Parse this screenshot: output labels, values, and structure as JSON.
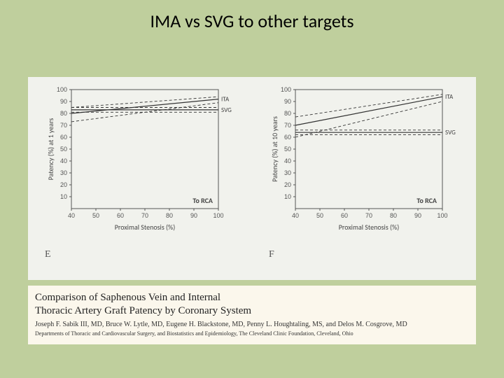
{
  "title": "IMA vs SVG to other targets",
  "figure": {
    "background_color": "#f1f2ed",
    "axis_color": "#555555",
    "line_color": "#333333",
    "dash_pattern": "4 3",
    "line_width_solid": 1.2,
    "line_width_dash": 0.9,
    "xlim": [
      40,
      100
    ],
    "ylim": [
      0,
      100
    ],
    "xticks": [
      40,
      50,
      60,
      70,
      80,
      90,
      100
    ],
    "yticks": [
      10,
      20,
      30,
      40,
      50,
      60,
      70,
      80,
      90,
      100
    ],
    "xlabel": "Proximal Stenosis (%)",
    "panel_text": "To RCA",
    "panels": {
      "E": {
        "corner": "E",
        "ylabel": "Patency (%) at 1 years",
        "series": [
          {
            "name": "ITA",
            "label": "ITA",
            "style": "solid",
            "center": [
              [
                40,
                80
              ],
              [
                100,
                92
              ]
            ],
            "upper": [
              [
                40,
                85
              ],
              [
                100,
                94
              ]
            ],
            "lower": [
              [
                40,
                73
              ],
              [
                100,
                89
              ]
            ]
          },
          {
            "name": "SVG",
            "label": "SVG",
            "style": "solid",
            "center": [
              [
                40,
                83
              ],
              [
                100,
                83
              ]
            ],
            "upper": [
              [
                40,
                85
              ],
              [
                100,
                85
              ]
            ],
            "lower": [
              [
                40,
                81
              ],
              [
                100,
                81
              ]
            ]
          }
        ],
        "label_positions": {
          "ITA": [
            100,
            92
          ],
          "SVG": [
            100,
            83
          ]
        }
      },
      "F": {
        "corner": "F",
        "ylabel": "Patency (%) at 10 years",
        "series": [
          {
            "name": "ITA",
            "label": "ITA",
            "style": "solid",
            "center": [
              [
                40,
                70
              ],
              [
                100,
                94
              ]
            ],
            "upper": [
              [
                40,
                77
              ],
              [
                100,
                96
              ]
            ],
            "lower": [
              [
                40,
                60
              ],
              [
                100,
                90
              ]
            ]
          },
          {
            "name": "SVG",
            "label": "SVG",
            "style": "solid",
            "center": [
              [
                40,
                64
              ],
              [
                100,
                64
              ]
            ],
            "upper": [
              [
                40,
                66
              ],
              [
                100,
                66
              ]
            ],
            "lower": [
              [
                40,
                62
              ],
              [
                100,
                62
              ]
            ]
          }
        ],
        "label_positions": {
          "ITA": [
            100,
            94
          ],
          "SVG": [
            100,
            64
          ]
        }
      }
    }
  },
  "citation": {
    "background_color": "#fbf7ec",
    "title_lines": [
      "Comparison of Saphenous Vein and Internal",
      "Thoracic Artery Graft Patency by Coronary System"
    ],
    "authors": "Joseph F. Sabik III, MD, Bruce W. Lytle, MD, Eugene H. Blackstone, MD, Penny L. Houghtaling, MS, and Delos M. Cosgrove, MD",
    "affiliation": "Departments of Thoracic and Cardiovascular Surgery, and Biostatistics and Epidemiology, The Cleveland Clinic Foundation, Cleveland, Ohio"
  }
}
